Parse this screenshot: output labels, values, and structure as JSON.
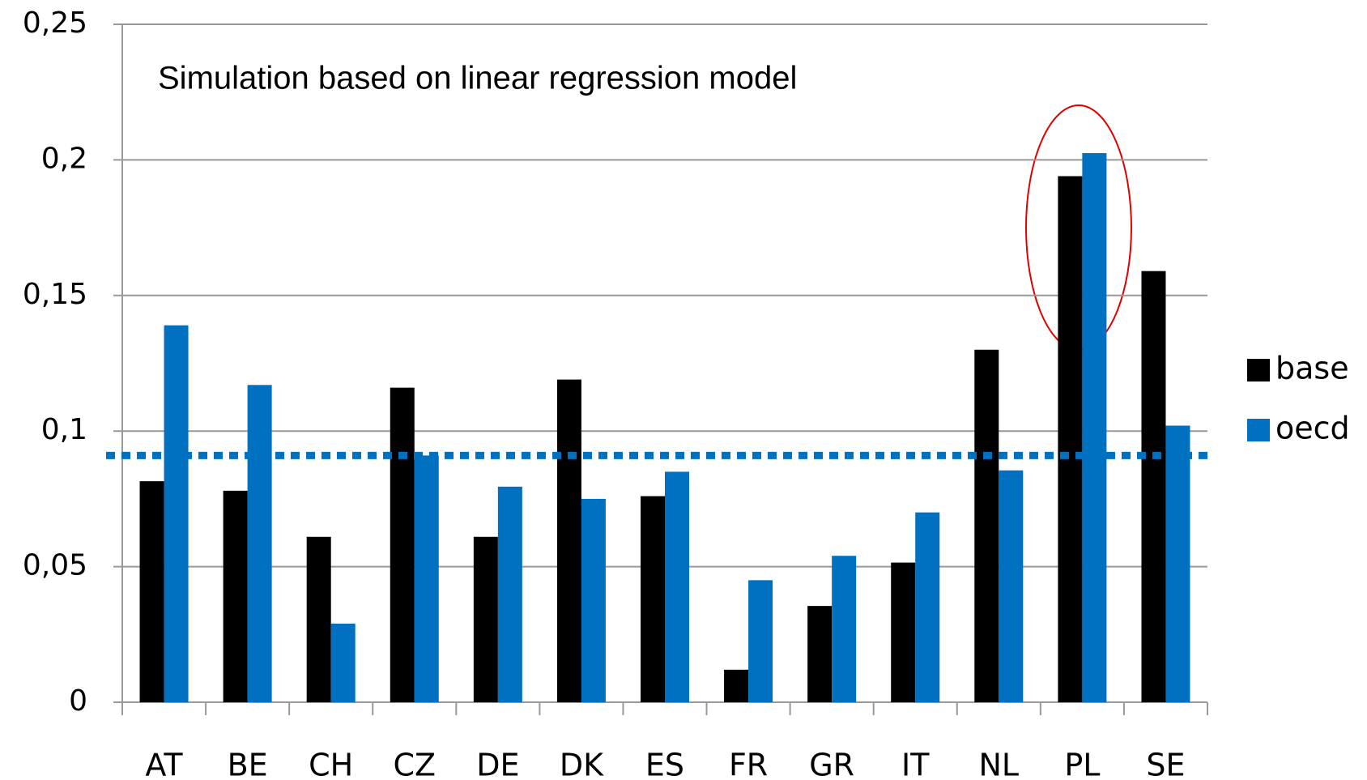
{
  "chart_data": {
    "type": "bar",
    "annotation": "Simulation based on linear regression model",
    "categories": [
      "AT",
      "BE",
      "CH",
      "CZ",
      "DE",
      "DK",
      "ES",
      "FR",
      "GR",
      "IT",
      "NL",
      "PL",
      "SE"
    ],
    "series": [
      {
        "name": "base",
        "color": "#000000",
        "values": [
          0.0815,
          0.078,
          0.061,
          0.116,
          0.061,
          0.119,
          0.076,
          0.012,
          0.0355,
          0.0515,
          0.13,
          0.194,
          0.159
        ]
      },
      {
        "name": "oecd",
        "color": "#0070c0",
        "values": [
          0.139,
          0.117,
          0.029,
          0.091,
          0.0795,
          0.075,
          0.085,
          0.045,
          0.054,
          0.07,
          0.0855,
          0.2025,
          0.102
        ]
      }
    ],
    "reference_line": {
      "value": 0.091,
      "color": "#0070c0"
    },
    "ylim": [
      0,
      0.25
    ],
    "yticks": [
      0,
      {
        "value": 0.05,
        "label": "0,05"
      },
      {
        "value": 0.1,
        "label": "0,1"
      },
      {
        "value": 0.15,
        "label": "0,15"
      },
      {
        "value": 0.2,
        "label": "0,2"
      },
      {
        "value": 0.25,
        "label": "0,25"
      }
    ],
    "grid": true,
    "legend": "right"
  }
}
